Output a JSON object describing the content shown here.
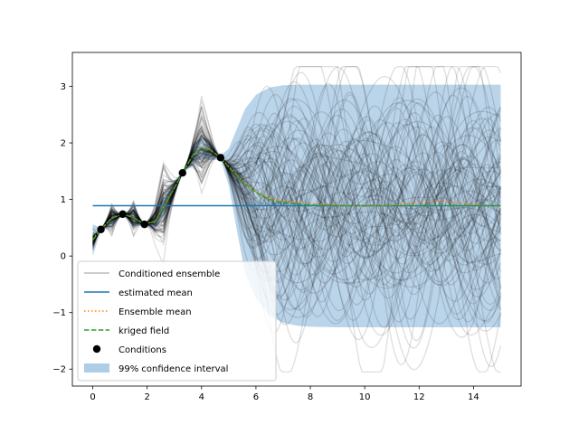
{
  "chart_data": {
    "type": "line",
    "title": "",
    "xlabel": "",
    "ylabel": "",
    "xlim": [
      -0.75,
      15.75
    ],
    "ylim": [
      -2.3,
      3.6
    ],
    "x_ticks": [
      0,
      2,
      4,
      6,
      8,
      10,
      12,
      14
    ],
    "x_tick_labels": [
      "0",
      "2",
      "4",
      "6",
      "8",
      "10",
      "12",
      "14"
    ],
    "y_ticks": [
      -2,
      -1,
      0,
      1,
      2,
      3
    ],
    "y_tick_labels": [
      "−2",
      "−1",
      "0",
      "1",
      "2",
      "3"
    ],
    "grid": false,
    "legend_position": "lower-left",
    "legend": [
      {
        "label": "Conditioned ensemble",
        "kind": "line",
        "color": "#bbbbbb"
      },
      {
        "label": "estimated mean",
        "kind": "line",
        "color": "#1f77b4"
      },
      {
        "label": "Ensemble mean",
        "kind": "dotted",
        "color": "#ff7f0e"
      },
      {
        "label": "kriged field",
        "kind": "dashed",
        "color": "#2ca02c"
      },
      {
        "label": "Conditions",
        "kind": "marker",
        "color": "#000000"
      },
      {
        "label": "99% confidence interval",
        "kind": "patch",
        "color": "#aecde6"
      }
    ],
    "estimated_mean": 0.89,
    "conditions": {
      "x": [
        0.3,
        1.1,
        1.9,
        3.3,
        4.7
      ],
      "y": [
        0.47,
        0.74,
        0.56,
        1.47,
        1.74
      ]
    },
    "kriged_field": {
      "x": [
        0,
        0.3,
        0.7,
        1.1,
        1.5,
        1.9,
        2.3,
        2.7,
        3.0,
        3.3,
        3.7,
        4.0,
        4.3,
        4.7,
        5.0,
        5.5,
        6.0,
        6.5,
        7.0,
        8.0,
        9.0,
        10.0,
        11.0,
        12.0,
        13.0,
        14.0,
        15.0
      ],
      "y": [
        0.28,
        0.47,
        0.67,
        0.74,
        0.68,
        0.56,
        0.62,
        0.95,
        1.2,
        1.47,
        1.8,
        1.91,
        1.88,
        1.74,
        1.57,
        1.32,
        1.12,
        1.0,
        0.94,
        0.9,
        0.89,
        0.89,
        0.89,
        0.89,
        0.89,
        0.89,
        0.89
      ]
    },
    "ensemble_mean": {
      "x": [
        0,
        0.3,
        0.7,
        1.1,
        1.5,
        1.9,
        2.3,
        2.7,
        3.0,
        3.3,
        3.7,
        4.0,
        4.3,
        4.7,
        5.0,
        5.5,
        6.0,
        6.5,
        7.0,
        8.0,
        9.0,
        10.0,
        11.0,
        12.0,
        12.7,
        13.5,
        14.3,
        15.0
      ],
      "y": [
        0.3,
        0.47,
        0.67,
        0.74,
        0.68,
        0.56,
        0.62,
        0.95,
        1.2,
        1.47,
        1.8,
        1.92,
        1.89,
        1.74,
        1.58,
        1.34,
        1.15,
        1.03,
        0.98,
        0.93,
        0.9,
        0.88,
        0.9,
        0.95,
        0.98,
        0.94,
        0.9,
        0.88
      ]
    },
    "confidence_interval_99": {
      "x": [
        0,
        0.3,
        0.7,
        1.1,
        1.5,
        1.9,
        2.3,
        2.7,
        3.0,
        3.3,
        3.7,
        4.0,
        4.3,
        4.7,
        5.0,
        5.3,
        5.6,
        6.0,
        6.5,
        7.0,
        7.5,
        8.0,
        9.0,
        15.0
      ],
      "lower": [
        0.0,
        0.45,
        0.52,
        0.72,
        0.52,
        0.54,
        0.45,
        0.78,
        1.06,
        1.45,
        1.62,
        1.72,
        1.7,
        1.7,
        1.25,
        0.45,
        -0.3,
        -0.75,
        -1.05,
        -1.18,
        -1.23,
        -1.25,
        -1.26,
        -1.26
      ],
      "upper": [
        0.56,
        0.49,
        0.82,
        0.76,
        0.84,
        0.58,
        0.79,
        1.12,
        1.34,
        1.49,
        1.98,
        2.1,
        2.06,
        1.78,
        1.9,
        2.25,
        2.6,
        2.85,
        2.98,
        3.02,
        3.03,
        3.03,
        3.03,
        3.03
      ]
    },
    "conditioned_ensemble": {
      "count": 100,
      "x_range": [
        0,
        15
      ],
      "y_range_observed": [
        -2.05,
        3.35
      ]
    }
  }
}
